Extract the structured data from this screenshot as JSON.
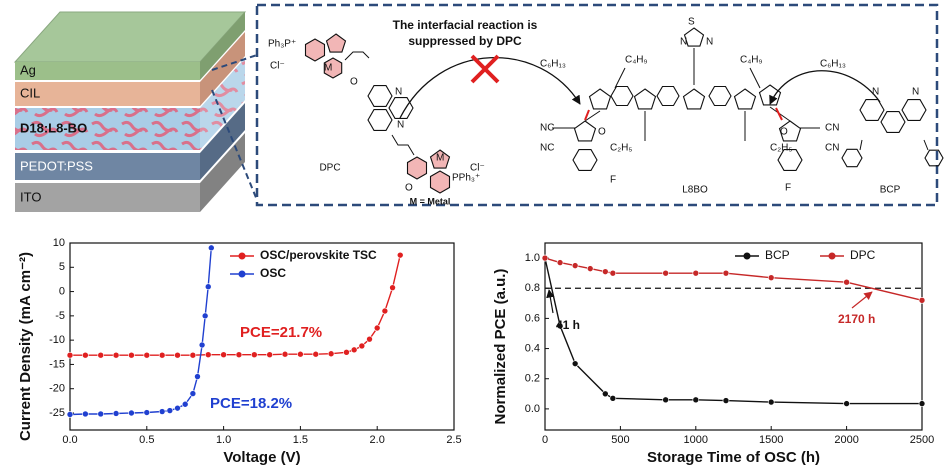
{
  "device": {
    "layers": [
      "Ag",
      "CIL",
      "D18:L8-BO",
      "PEDOT:PSS",
      "ITO"
    ]
  },
  "scheme": {
    "note": [
      "The interfacial reaction is",
      "suppressed  by DPC"
    ],
    "molecules": [
      "DPC",
      "L8BO",
      "BCP"
    ],
    "metal_note": "M = Metal",
    "atom_labels": [
      "Ph₃P⁺",
      "Cl⁻",
      "M",
      "N",
      "N",
      "M",
      "PPh₃⁺",
      "Cl⁻",
      "O",
      "O",
      "C₆H₁₃",
      "C₄H₉",
      "C₄H₉",
      "C₆H₁₃",
      "S",
      "N",
      "N",
      "C₂H₅",
      "C₂H₅",
      "NC",
      "NC",
      "CN",
      "CN",
      "F",
      "F",
      "O",
      "O",
      "N",
      "N"
    ]
  },
  "chart_data": [
    {
      "type": "line",
      "xlabel": "Voltage (V)",
      "ylabel": "Current Density (mA cm⁻²)",
      "xlim": [
        0,
        2.5
      ],
      "ylim": [
        -28.5,
        10
      ],
      "xticks": [
        {
          "value": 0,
          "label": "0.0"
        },
        {
          "value": 0.5,
          "label": "0.5"
        },
        {
          "value": 1,
          "label": "1.0"
        },
        {
          "value": 1.5,
          "label": "1.5"
        },
        {
          "value": 2,
          "label": "2.0"
        },
        {
          "value": 2.5,
          "label": "2.5"
        }
      ],
      "yticks": [
        10,
        5,
        0,
        -5,
        -10,
        -15,
        -20,
        -25
      ],
      "legend": "upper left",
      "series": [
        {
          "name": "OSC/perovskite TSC",
          "color": "#e02020",
          "x": [
            0,
            0.1,
            0.2,
            0.3,
            0.4,
            0.5,
            0.6,
            0.7,
            0.8,
            0.9,
            1.0,
            1.1,
            1.2,
            1.3,
            1.4,
            1.5,
            1.6,
            1.7,
            1.8,
            1.85,
            1.9,
            1.95,
            2.0,
            2.05,
            2.1,
            2.15
          ],
          "values": [
            -13.1,
            -13.1,
            -13.1,
            -13.1,
            -13.1,
            -13.1,
            -13.1,
            -13.1,
            -13.1,
            -13.0,
            -13.0,
            -13.0,
            -13.0,
            -13.0,
            -12.9,
            -12.9,
            -12.9,
            -12.8,
            -12.5,
            -12.0,
            -11.2,
            -9.8,
            -7.5,
            -4.0,
            0.8,
            7.5
          ]
        },
        {
          "name": "OSC",
          "color": "#2040d0",
          "x": [
            0,
            0.1,
            0.2,
            0.3,
            0.4,
            0.5,
            0.6,
            0.65,
            0.7,
            0.75,
            0.8,
            0.83,
            0.86,
            0.88,
            0.9,
            0.92
          ],
          "values": [
            -25.3,
            -25.2,
            -25.2,
            -25.1,
            -25.0,
            -24.9,
            -24.7,
            -24.5,
            -24.0,
            -23.2,
            -21.0,
            -17.5,
            -11.0,
            -5.0,
            1.0,
            9.0
          ]
        }
      ],
      "annotations": [
        {
          "text": "PCE=21.7%",
          "color": "#e02020"
        },
        {
          "text": "PCE=18.2%",
          "color": "#2040d0"
        }
      ]
    },
    {
      "type": "line",
      "xlabel": "Storage Time of OSC (h)",
      "ylabel": "Normalized PCE (a.u.)",
      "xlim": [
        0,
        2500
      ],
      "ylim": [
        -0.14,
        1.1
      ],
      "xticks": [
        0,
        500,
        1000,
        1500,
        2000,
        2500
      ],
      "yticks": [
        {
          "value": 0,
          "label": "0.0"
        },
        {
          "value": 0.2,
          "label": "0.2"
        },
        {
          "value": 0.4,
          "label": "0.4"
        },
        {
          "value": 0.6,
          "label": "0.6"
        },
        {
          "value": 0.8,
          "label": "0.8"
        },
        {
          "value": 1,
          "label": "1.0"
        }
      ],
      "legend": "upper center",
      "reference_line": 0.8,
      "series": [
        {
          "name": "BCP",
          "color": "#111111",
          "x": [
            0,
            100,
            200,
            400,
            450,
            800,
            1000,
            1200,
            1500,
            2000,
            2500
          ],
          "values": [
            1.0,
            0.55,
            0.3,
            0.1,
            0.07,
            0.06,
            0.06,
            0.055,
            0.045,
            0.035,
            0.035
          ]
        },
        {
          "name": "DPC",
          "color": "#c62828",
          "x": [
            0,
            100,
            200,
            300,
            400,
            450,
            800,
            1000,
            1200,
            1500,
            2000,
            2500
          ],
          "values": [
            1.0,
            0.97,
            0.95,
            0.93,
            0.91,
            0.9,
            0.9,
            0.9,
            0.9,
            0.87,
            0.84,
            0.72
          ]
        }
      ],
      "annotations": [
        {
          "text": "41 h",
          "color": "#111111"
        },
        {
          "text": "2170 h",
          "color": "#c62828"
        }
      ]
    }
  ]
}
